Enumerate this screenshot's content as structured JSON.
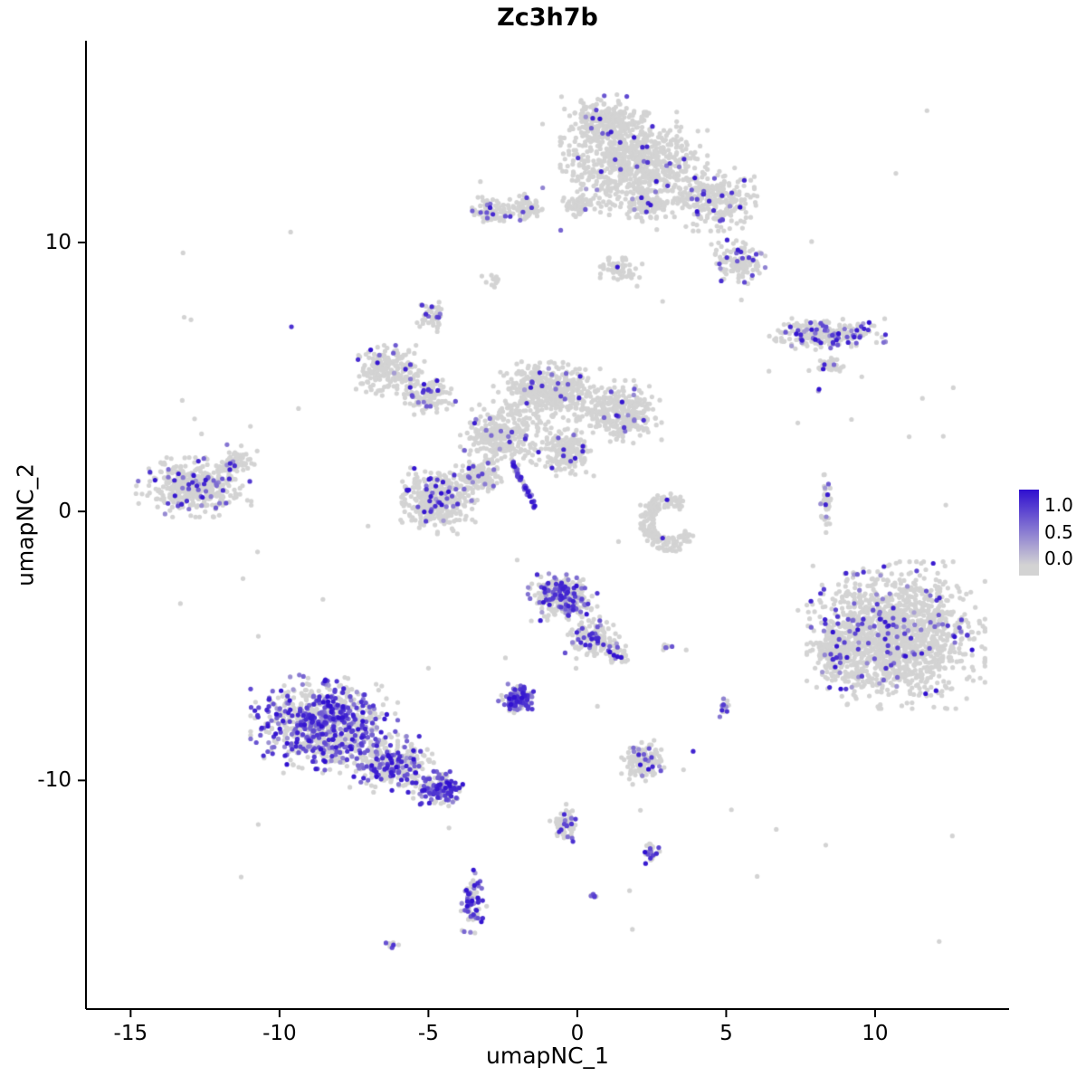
{
  "figure": {
    "background": "#ffffff"
  },
  "chart_data": {
    "type": "scatter",
    "title": "Zc3h7b",
    "xlabel": "umapNC_1",
    "ylabel": "umapNC_2",
    "xlim": [
      -16.5,
      14.5
    ],
    "ylim": [
      -18.5,
      17.5
    ],
    "xticks": [
      -15,
      -10,
      -5,
      0,
      5,
      10
    ],
    "yticks": [
      -10,
      0,
      10
    ],
    "grid": false,
    "legend_position": "right",
    "legend_ticks": [
      "1.0",
      "0.5",
      "0.0"
    ],
    "point_radius_px": 2.6,
    "seed": 42,
    "colors": {
      "low": "#d3d3d3",
      "high": "#2f0fd0",
      "axis": "#000000",
      "text": "#000000",
      "background": "#ffffff"
    },
    "clusters": [
      {
        "name": "top-main",
        "cx": 1.9,
        "cy": 12.9,
        "rx": 1.9,
        "ry": 1.5,
        "n": 850,
        "expr_frac": 0.03,
        "kind": "blob"
      },
      {
        "name": "top-upper-lobe",
        "cx": 0.9,
        "cy": 14.6,
        "rx": 1.1,
        "ry": 0.7,
        "n": 220,
        "expr_frac": 0.03,
        "kind": "blob"
      },
      {
        "name": "top-right-arm",
        "cx": 4.6,
        "cy": 11.6,
        "rx": 1.2,
        "ry": 0.9,
        "n": 260,
        "expr_frac": 0.07,
        "kind": "blob"
      },
      {
        "name": "top-right-knob",
        "cx": 5.4,
        "cy": 9.3,
        "rx": 0.7,
        "ry": 0.7,
        "n": 120,
        "expr_frac": 0.08,
        "kind": "blob"
      },
      {
        "name": "top-small-left-a",
        "cx": -2.85,
        "cy": 11.2,
        "rx": 0.55,
        "ry": 0.4,
        "n": 80,
        "expr_frac": 0.12,
        "kind": "blob"
      },
      {
        "name": "top-small-left-b",
        "cx": -1.7,
        "cy": 11.3,
        "rx": 0.5,
        "ry": 0.4,
        "n": 70,
        "expr_frac": 0.1,
        "kind": "blob"
      },
      {
        "name": "top-small-mid",
        "cx": 0.0,
        "cy": 11.4,
        "rx": 0.45,
        "ry": 0.35,
        "n": 50,
        "expr_frac": 0.06,
        "kind": "blob"
      },
      {
        "name": "top-below-small",
        "cx": 2.3,
        "cy": 11.3,
        "rx": 0.6,
        "ry": 0.4,
        "n": 70,
        "expr_frac": 0.1,
        "kind": "blob"
      },
      {
        "name": "below-top-scatter",
        "cx": 1.4,
        "cy": 9.0,
        "rx": 0.6,
        "ry": 0.5,
        "n": 50,
        "expr_frac": 0.06,
        "kind": "blob"
      },
      {
        "name": "tiny-upper-left",
        "cx": -2.9,
        "cy": 8.6,
        "rx": 0.25,
        "ry": 0.2,
        "n": 12,
        "expr_frac": 0.0,
        "kind": "blob"
      },
      {
        "name": "right-horizontal",
        "cx": 8.4,
        "cy": 6.6,
        "rx": 1.5,
        "ry": 0.45,
        "n": 210,
        "expr_frac": 0.25,
        "kind": "blob"
      },
      {
        "name": "right-horizontal-below",
        "cx": 8.4,
        "cy": 5.4,
        "rx": 0.5,
        "ry": 0.25,
        "n": 35,
        "expr_frac": 0.06,
        "kind": "blob"
      },
      {
        "name": "right-dot",
        "cx": 8.1,
        "cy": 4.55,
        "rx": 0.08,
        "ry": 0.08,
        "n": 2,
        "expr_frac": 1.0,
        "kind": "blob"
      },
      {
        "name": "small-left-upper",
        "cx": -4.86,
        "cy": 7.2,
        "rx": 0.4,
        "ry": 0.45,
        "n": 40,
        "expr_frac": 0.18,
        "kind": "blob"
      },
      {
        "name": "midleft",
        "cx": -6.3,
        "cy": 5.2,
        "rx": 1.0,
        "ry": 0.75,
        "n": 200,
        "expr_frac": 0.06,
        "kind": "blob"
      },
      {
        "name": "midleft-lower",
        "cx": -5.0,
        "cy": 4.3,
        "rx": 0.7,
        "ry": 0.6,
        "n": 110,
        "expr_frac": 0.08,
        "kind": "blob"
      },
      {
        "name": "central-upper",
        "cx": -1.0,
        "cy": 4.5,
        "rx": 1.4,
        "ry": 0.9,
        "n": 420,
        "expr_frac": 0.04,
        "kind": "blob"
      },
      {
        "name": "central-right",
        "cx": 1.4,
        "cy": 3.7,
        "rx": 1.1,
        "ry": 0.9,
        "n": 330,
        "expr_frac": 0.05,
        "kind": "blob"
      },
      {
        "name": "central-left",
        "cx": -2.5,
        "cy": 2.8,
        "rx": 1.1,
        "ry": 0.9,
        "n": 330,
        "expr_frac": 0.06,
        "kind": "blob"
      },
      {
        "name": "central-lower",
        "cx": -0.4,
        "cy": 2.2,
        "rx": 0.8,
        "ry": 0.7,
        "n": 180,
        "expr_frac": 0.05,
        "kind": "blob"
      },
      {
        "name": "far-left",
        "cx": -12.9,
        "cy": 0.9,
        "rx": 1.5,
        "ry": 0.85,
        "n": 420,
        "expr_frac": 0.1,
        "kind": "blob"
      },
      {
        "name": "far-left-upper",
        "cx": -11.4,
        "cy": 1.9,
        "rx": 0.5,
        "ry": 0.45,
        "n": 60,
        "expr_frac": 0.06,
        "kind": "blob"
      },
      {
        "name": "left-center",
        "cx": -4.7,
        "cy": 0.4,
        "rx": 1.1,
        "ry": 0.95,
        "n": 360,
        "expr_frac": 0.12,
        "kind": "blob"
      },
      {
        "name": "left-center-upper",
        "cx": -3.3,
        "cy": 1.3,
        "rx": 0.6,
        "ry": 0.5,
        "n": 120,
        "expr_frac": 0.08,
        "kind": "blob"
      },
      {
        "name": "purple-streak",
        "cx": -1.8,
        "cy": 1.0,
        "rx": 0.4,
        "ry": 0.85,
        "n": 55,
        "expr_frac": 0.8,
        "kind": "streak"
      },
      {
        "name": "c-ring",
        "cx": 3.1,
        "cy": -0.4,
        "rx": 0.95,
        "ry": 1.05,
        "n": 190,
        "expr_frac": 0.02,
        "kind": "ring"
      },
      {
        "name": "right-vertical-streak",
        "cx": 8.35,
        "cy": 0.3,
        "rx": 0.15,
        "ry": 0.85,
        "n": 50,
        "expr_frac": 0.1,
        "kind": "blob"
      },
      {
        "name": "big-right",
        "cx": 10.7,
        "cy": -4.6,
        "rx": 2.3,
        "ry": 2.1,
        "n": 1500,
        "expr_frac": 0.07,
        "kind": "blob"
      },
      {
        "name": "big-right-left-edge",
        "cx": 8.6,
        "cy": -5.3,
        "rx": 0.6,
        "ry": 1.0,
        "n": 140,
        "expr_frac": 0.1,
        "kind": "blob"
      },
      {
        "name": "center-bottom-a",
        "cx": -0.5,
        "cy": -3.2,
        "rx": 0.9,
        "ry": 0.7,
        "n": 280,
        "expr_frac": 0.35,
        "kind": "blob"
      },
      {
        "name": "center-bottom-b",
        "cx": 0.5,
        "cy": -4.7,
        "rx": 0.7,
        "ry": 0.6,
        "n": 140,
        "expr_frac": 0.2,
        "kind": "blob"
      },
      {
        "name": "center-bottom-c",
        "cx": 1.3,
        "cy": -5.3,
        "rx": 0.35,
        "ry": 0.3,
        "n": 40,
        "expr_frac": 0.15,
        "kind": "blob"
      },
      {
        "name": "dot-3-neg5",
        "cx": 3.0,
        "cy": -5.0,
        "rx": 0.15,
        "ry": 0.15,
        "n": 10,
        "expr_frac": 0.3,
        "kind": "blob"
      },
      {
        "name": "purple-dense-small",
        "cx": -2.0,
        "cy": -7.0,
        "rx": 0.5,
        "ry": 0.45,
        "n": 110,
        "expr_frac": 0.7,
        "kind": "blob"
      },
      {
        "name": "bottom-left-main",
        "cx": -8.5,
        "cy": -7.9,
        "rx": 1.9,
        "ry": 1.4,
        "n": 850,
        "expr_frac": 0.45,
        "kind": "blob"
      },
      {
        "name": "bottom-left-tail",
        "cx": -6.2,
        "cy": -9.4,
        "rx": 1.2,
        "ry": 0.8,
        "n": 280,
        "expr_frac": 0.35,
        "kind": "blob"
      },
      {
        "name": "bottom-left-tail-end",
        "cx": -4.6,
        "cy": -10.3,
        "rx": 0.7,
        "ry": 0.5,
        "n": 150,
        "expr_frac": 0.55,
        "kind": "blob"
      },
      {
        "name": "small-2-neg9",
        "cx": 2.2,
        "cy": -9.3,
        "rx": 0.55,
        "ry": 0.65,
        "n": 130,
        "expr_frac": 0.12,
        "kind": "blob"
      },
      {
        "name": "small-5-neg7",
        "cx": 4.9,
        "cy": -7.3,
        "rx": 0.25,
        "ry": 0.3,
        "n": 20,
        "expr_frac": 0.2,
        "kind": "blob"
      },
      {
        "name": "small-0-neg11",
        "cx": -0.4,
        "cy": -11.6,
        "rx": 0.4,
        "ry": 0.55,
        "n": 60,
        "expr_frac": 0.25,
        "kind": "blob"
      },
      {
        "name": "small-2-neg12",
        "cx": 2.45,
        "cy": -12.7,
        "rx": 0.25,
        "ry": 0.3,
        "n": 28,
        "expr_frac": 0.5,
        "kind": "blob"
      },
      {
        "name": "small-neg3-neg14",
        "cx": -3.5,
        "cy": -14.5,
        "rx": 0.35,
        "ry": 0.9,
        "n": 85,
        "expr_frac": 0.45,
        "kind": "blob"
      },
      {
        "name": "tiny-neg6-neg16",
        "cx": -6.2,
        "cy": -16.1,
        "rx": 0.22,
        "ry": 0.13,
        "n": 8,
        "expr_frac": 0.4,
        "kind": "blob"
      },
      {
        "name": "tiny-0-neg14",
        "cx": 0.55,
        "cy": -14.25,
        "rx": 0.13,
        "ry": 0.13,
        "n": 7,
        "expr_frac": 0.6,
        "kind": "blob"
      }
    ],
    "noise_points": {
      "n": 70,
      "x_range": [
        -14,
        13
      ],
      "y_range": [
        -16,
        15.5
      ],
      "expr_frac": 0.05
    }
  }
}
